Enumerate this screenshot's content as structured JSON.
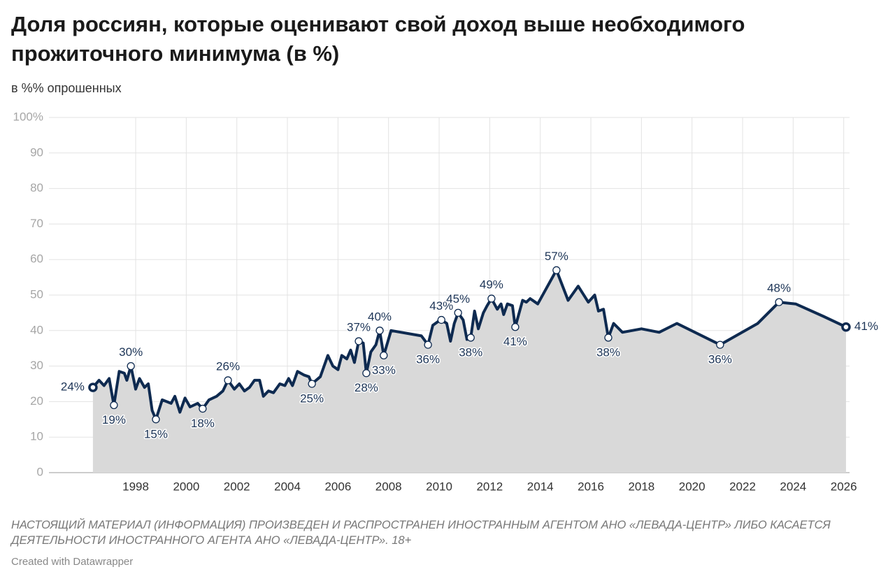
{
  "chart_data": {
    "type": "line",
    "title": "Доля россиян, которые оценивают свой доход выше необходимого прожиточного минимума (в %)",
    "subtitle": "в %% опрошенных",
    "note": "НАСТОЯЩИЙ МАТЕРИАЛ (ИНФОРМАЦИЯ) ПРОИЗВЕДЕН И РАСПРОСТРАНЕН ИНОСТРАННЫМ АГЕНТОМ АНО «ЛЕВАДА-ЦЕНТР» ЛИБО КАСАЕТСЯ ДЕЯТЕЛЬНОСТИ ИНОСТРАННОГО АГЕНТА АНО «ЛЕВАДА-ЦЕНТР». 18+",
    "credit": "Created with Datawrapper",
    "color": "#0e2a50",
    "area_color": "#d9d9d9",
    "grid": true,
    "xlim": [
      1994.57,
      2026.23
    ],
    "xticks": [
      1998,
      2000,
      2002,
      2004,
      2006,
      2008,
      2010,
      2012,
      2014,
      2016,
      2018,
      2020,
      2022,
      2024,
      2026
    ],
    "ylim": [
      0,
      100
    ],
    "yticks": [
      0,
      10,
      20,
      30,
      40,
      50,
      60,
      70,
      80,
      90,
      {
        "value": 100,
        "label": "100%"
      }
    ],
    "x": [
      1996.31,
      1996.55,
      1996.75,
      1996.95,
      1997.14,
      1997.35,
      1997.55,
      1997.65,
      1997.81,
      1998.0,
      1998.15,
      1998.35,
      1998.5,
      1998.65,
      1998.8,
      1999.05,
      1999.4,
      1999.55,
      1999.75,
      1999.95,
      2000.15,
      2000.45,
      2000.65,
      2000.9,
      2001.2,
      2001.45,
      2001.65,
      2001.9,
      2002.1,
      2002.3,
      2002.5,
      2002.7,
      2002.9,
      2003.05,
      2003.25,
      2003.45,
      2003.7,
      2003.9,
      2004.05,
      2004.2,
      2004.4,
      2004.65,
      2004.85,
      2004.97,
      2005.3,
      2005.6,
      2005.8,
      2006.0,
      2006.15,
      2006.35,
      2006.5,
      2006.65,
      2006.82,
      2007.0,
      2007.12,
      2007.3,
      2007.5,
      2007.65,
      2007.81,
      2008.1,
      2009.3,
      2009.56,
      2009.75,
      2009.95,
      2010.09,
      2010.3,
      2010.45,
      2010.6,
      2010.75,
      2010.95,
      2011.1,
      2011.25,
      2011.4,
      2011.55,
      2011.75,
      2011.9,
      2012.07,
      2012.3,
      2012.45,
      2012.55,
      2012.7,
      2012.9,
      2013.01,
      2013.3,
      2013.45,
      2013.6,
      2013.9,
      2014.64,
      2015.1,
      2015.5,
      2015.9,
      2016.15,
      2016.3,
      2016.5,
      2016.69,
      2016.9,
      2017.25,
      2018.0,
      2018.7,
      2019.4,
      2021.11,
      2022.6,
      2023.44,
      2024.1,
      2025.2,
      2026.09
    ],
    "values": [
      24,
      26,
      24.5,
      26.5,
      19,
      28.5,
      28,
      26,
      30,
      23.5,
      26.5,
      24,
      25,
      17.5,
      15,
      20.5,
      19.5,
      21.5,
      17,
      21,
      18.5,
      19.5,
      18,
      20.5,
      21.5,
      23,
      26,
      23.5,
      25,
      23,
      24,
      26,
      26,
      21.5,
      23,
      22.5,
      25,
      24.5,
      26.5,
      24.5,
      28.5,
      27.5,
      27,
      25,
      27,
      33,
      30,
      29,
      33,
      32,
      34.5,
      31,
      37,
      36.5,
      28,
      34,
      36,
      40,
      33,
      40,
      38.5,
      36,
      41.5,
      42.5,
      43,
      42,
      37,
      42,
      45,
      43,
      37.5,
      38,
      45.5,
      40.5,
      45,
      47,
      49,
      46,
      47.5,
      44.5,
      47.5,
      47,
      41,
      48.5,
      48,
      49,
      47.5,
      57,
      48.5,
      52.5,
      48,
      50,
      45.5,
      46,
      38,
      42,
      39.5,
      40.5,
      39.5,
      42,
      36,
      42,
      48,
      47.5,
      44,
      41
    ],
    "value_labels": [
      "24%",
      null,
      null,
      null,
      "19%",
      null,
      null,
      null,
      "30%",
      null,
      null,
      null,
      null,
      null,
      "15%",
      null,
      null,
      null,
      null,
      null,
      null,
      null,
      "18%",
      null,
      null,
      null,
      "26%",
      null,
      null,
      null,
      null,
      null,
      null,
      null,
      null,
      null,
      null,
      null,
      null,
      null,
      null,
      null,
      null,
      "25%",
      null,
      null,
      null,
      null,
      null,
      null,
      null,
      null,
      "37%",
      null,
      "28%",
      null,
      null,
      "40%",
      "33%",
      null,
      null,
      "36%",
      null,
      null,
      "43%",
      null,
      null,
      null,
      "45%",
      null,
      null,
      "38%",
      null,
      null,
      null,
      null,
      "49%",
      null,
      null,
      null,
      null,
      null,
      "41%",
      null,
      null,
      null,
      null,
      "57%",
      null,
      null,
      null,
      null,
      null,
      null,
      "38%",
      null,
      null,
      null,
      null,
      null,
      "36%",
      null,
      "48%",
      null,
      null,
      "41%"
    ]
  }
}
